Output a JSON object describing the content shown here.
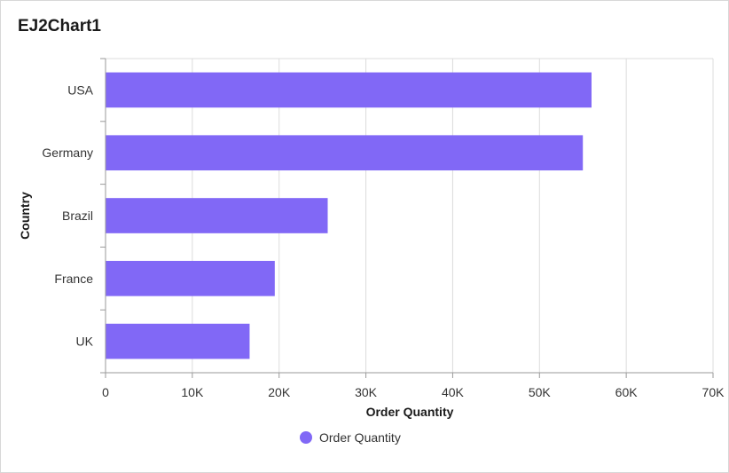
{
  "title": "EJ2Chart1",
  "colors": {
    "bar": "#8168F6",
    "grid": "#dcdcdc",
    "axis": "#9a9a9a"
  },
  "chart_data": {
    "type": "bar",
    "orientation": "horizontal",
    "categories": [
      "USA",
      "Germany",
      "Brazil",
      "France",
      "UK"
    ],
    "series": [
      {
        "name": "Order Quantity",
        "values": [
          56000,
          55000,
          25600,
          19500,
          16600
        ]
      }
    ],
    "xlabel": "Order Quantity",
    "ylabel": "Country",
    "xlim": [
      0,
      70000
    ],
    "x_ticks": [
      0,
      10000,
      20000,
      30000,
      40000,
      50000,
      60000,
      70000
    ],
    "x_tick_labels": [
      "0",
      "10K",
      "20K",
      "30K",
      "40K",
      "50K",
      "60K",
      "70K"
    ],
    "grid": true,
    "legend": "bottom-center"
  }
}
